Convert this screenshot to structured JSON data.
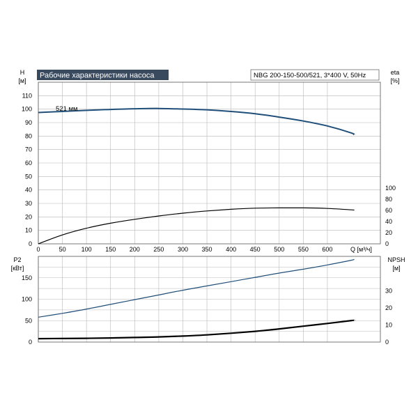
{
  "chart_data": [
    {
      "type": "line",
      "title": "Рабочие характеристики насоса",
      "subtitle": "NBG 200-150-500/521, 3*400 V, 50Hz",
      "xlabel": "Q [м³/ч]",
      "ylabel_left": "H",
      "ylabel_left_unit": "[м]",
      "ylabel_right": "eta",
      "ylabel_right_unit": "[%]",
      "xlim": [
        0,
        710
      ],
      "ylim_left": [
        0,
        120
      ],
      "ylim_right": [
        0,
        100
      ],
      "x_ticks": [
        0,
        50,
        100,
        150,
        200,
        250,
        300,
        350,
        400,
        450,
        500,
        550,
        600
      ],
      "y_ticks_left": [
        0,
        10,
        20,
        30,
        40,
        50,
        60,
        70,
        80,
        90,
        100,
        110
      ],
      "y_ticks_right": [
        0,
        20,
        40,
        60,
        80,
        100
      ],
      "grid": true,
      "annotation": "521 мм",
      "series": [
        {
          "name": "521 мм",
          "axis": "left",
          "color": "#1f4e79",
          "x": [
            0,
            50,
            100,
            150,
            200,
            250,
            300,
            350,
            400,
            450,
            500,
            550,
            600,
            650,
            655
          ],
          "values": [
            97.5,
            98.3,
            99.1,
            99.8,
            100.3,
            100.5,
            100.1,
            99.5,
            98.3,
            96.6,
            94.1,
            91.2,
            87.5,
            82.3,
            81.0
          ]
        },
        {
          "axis": "right",
          "color": "#000000",
          "x": [
            0,
            50,
            100,
            150,
            200,
            250,
            300,
            350,
            400,
            450,
            500,
            550,
            600,
            650,
            655
          ],
          "values": [
            0,
            16,
            28,
            37,
            44,
            50,
            55,
            59,
            62,
            64,
            64.5,
            64.5,
            63.5,
            61,
            60.5
          ]
        }
      ]
    },
    {
      "type": "line",
      "xlim": [
        0,
        710
      ],
      "ylabel_left": "P2",
      "ylabel_left_unit": "[кВт]",
      "ylabel_right": "NPSH",
      "ylabel_right_unit": "[м]",
      "ylim_left": [
        0,
        200
      ],
      "ylim_right": [
        0,
        40
      ],
      "y_ticks_left": [
        0,
        50,
        100,
        150
      ],
      "y_ticks_right": [
        0,
        10,
        20,
        30
      ],
      "grid": true,
      "series": [
        {
          "axis": "left",
          "color": "#1f4e79",
          "x": [
            0,
            50,
            100,
            150,
            200,
            250,
            300,
            350,
            400,
            450,
            500,
            550,
            600,
            650,
            655
          ],
          "values": [
            58,
            67,
            77,
            88,
            99,
            110,
            121,
            131,
            141,
            151,
            161,
            170,
            180,
            191,
            193
          ]
        },
        {
          "axis": "right",
          "color": "#000000",
          "x": [
            0,
            50,
            100,
            150,
            200,
            250,
            300,
            350,
            400,
            450,
            500,
            550,
            600,
            650,
            655
          ],
          "values": [
            2.0,
            2.1,
            2.2,
            2.4,
            2.7,
            3.0,
            3.5,
            4.2,
            5.2,
            6.3,
            7.7,
            9.3,
            10.9,
            12.6,
            12.8
          ]
        }
      ]
    }
  ]
}
